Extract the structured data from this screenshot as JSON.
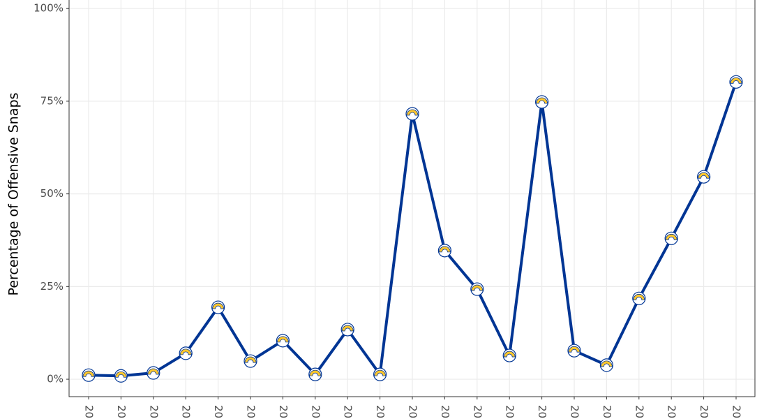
{
  "chart_data": {
    "type": "line",
    "y_label": "Percentage of Offensive Snaps",
    "categories": [
      "20",
      "20",
      "20",
      "20",
      "20",
      "20",
      "20",
      "20",
      "20",
      "20",
      "20",
      "20",
      "20",
      "20",
      "20",
      "20",
      "20",
      "20",
      "20",
      "20",
      "20"
    ],
    "series": [
      {
        "color": "#003594",
        "values": [
          1.1,
          0.9,
          1.7,
          7.0,
          19.4,
          4.9,
          10.4,
          1.3,
          13.4,
          1.3,
          71.6,
          34.7,
          24.3,
          6.4,
          74.8,
          7.7,
          3.8,
          21.8,
          38.0,
          54.6,
          80.2
        ]
      }
    ],
    "ylim": [
      -4.7,
      102.3
    ],
    "yticks": [
      {
        "value": 0,
        "label": "0%"
      },
      {
        "value": 25,
        "label": "25%"
      },
      {
        "value": 50,
        "label": "50%"
      },
      {
        "value": 75,
        "label": "75%"
      },
      {
        "value": 100,
        "label": "100%"
      }
    ],
    "grid": true
  }
}
